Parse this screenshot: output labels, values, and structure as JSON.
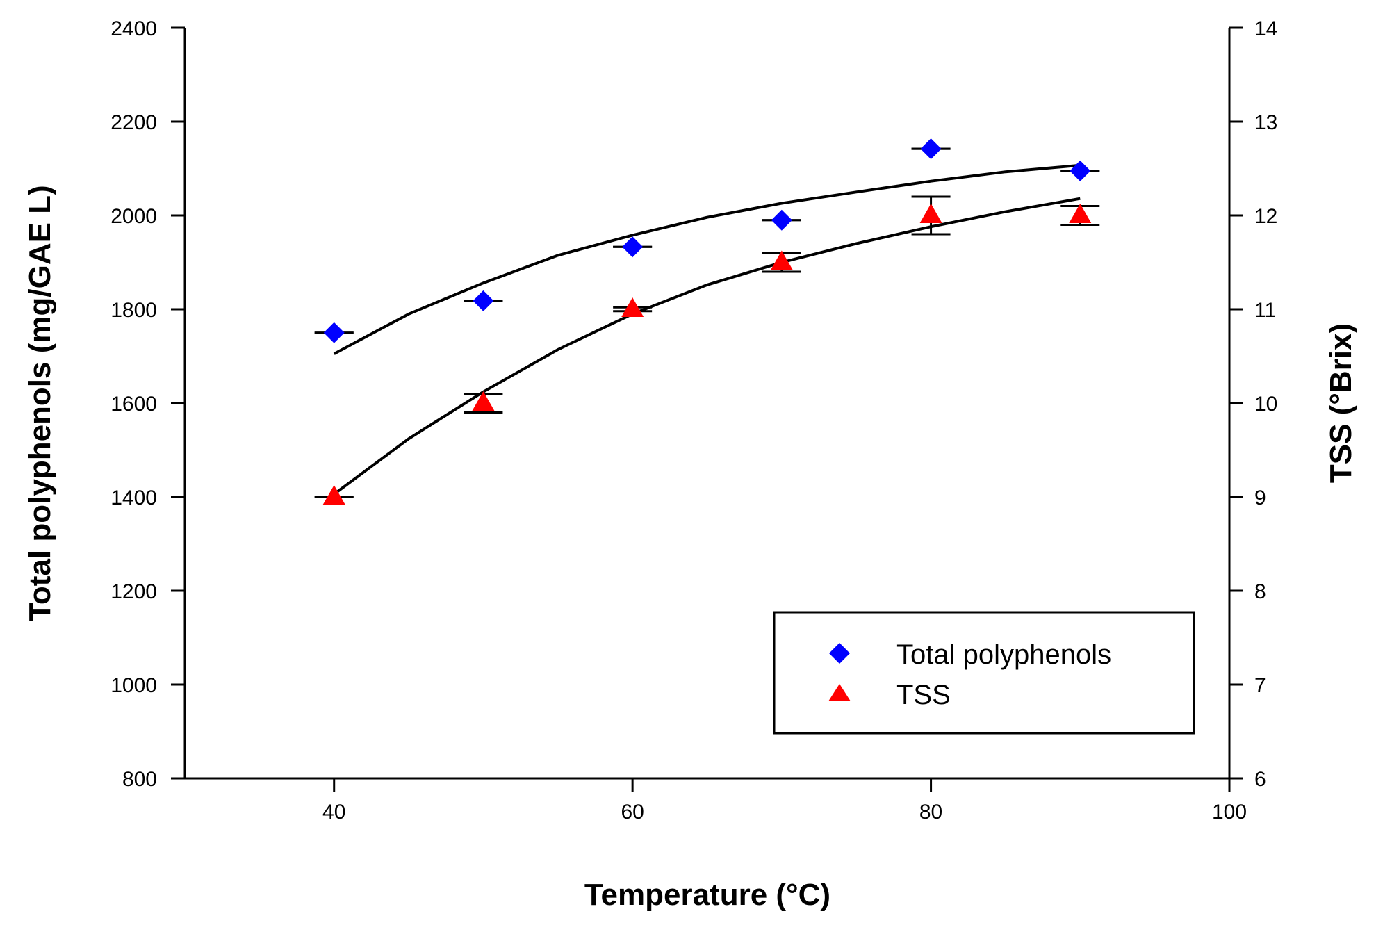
{
  "chart_data": {
    "type": "scatter",
    "title": "",
    "xlabel": "Temperature (°C)",
    "ylabel_left": "Total polyphenols (mg/GAE L)",
    "ylabel_right": "TSS (°Brix)",
    "xlim": [
      30,
      100
    ],
    "ylim_left": [
      800,
      2400
    ],
    "ylim_right": [
      6,
      14
    ],
    "x_ticks": [
      40,
      60,
      80,
      100
    ],
    "y_left_ticks": [
      800,
      1000,
      1200,
      1400,
      1600,
      1800,
      2000,
      2200,
      2400
    ],
    "y_right_ticks": [
      6,
      7,
      8,
      9,
      10,
      11,
      12,
      13,
      14
    ],
    "grid": false,
    "legend_position": "bottom-right",
    "series": [
      {
        "name": "Total polyphenols",
        "axis": "left",
        "marker": "diamond",
        "color": "#0000ff",
        "x": [
          40,
          50,
          60,
          70,
          80,
          90
        ],
        "y": [
          1750,
          1818,
          1933,
          1990,
          2142,
          2095
        ],
        "err": [
          0,
          0,
          0,
          0,
          0,
          0
        ],
        "trend_x": [
          40,
          45,
          50,
          55,
          60,
          65,
          70,
          75,
          80,
          85,
          90
        ],
        "trend_y": [
          1705,
          1790,
          1856,
          1915,
          1958,
          1996,
          2026,
          2050,
          2073,
          2093,
          2107
        ]
      },
      {
        "name": "TSS",
        "axis": "right",
        "marker": "triangle",
        "color": "#ff0000",
        "x": [
          40,
          50,
          60,
          70,
          80,
          90
        ],
        "y": [
          9.0,
          10.0,
          11.0,
          11.5,
          12.0,
          12.0
        ],
        "err": [
          0.0,
          0.1,
          0.02,
          0.1,
          0.2,
          0.1
        ],
        "trend_x": [
          40,
          45,
          50,
          55,
          60,
          65,
          70,
          75,
          80,
          85,
          90
        ],
        "trend_y": [
          9.03,
          9.62,
          10.12,
          10.57,
          10.95,
          11.26,
          11.5,
          11.7,
          11.88,
          12.04,
          12.18
        ]
      }
    ]
  }
}
